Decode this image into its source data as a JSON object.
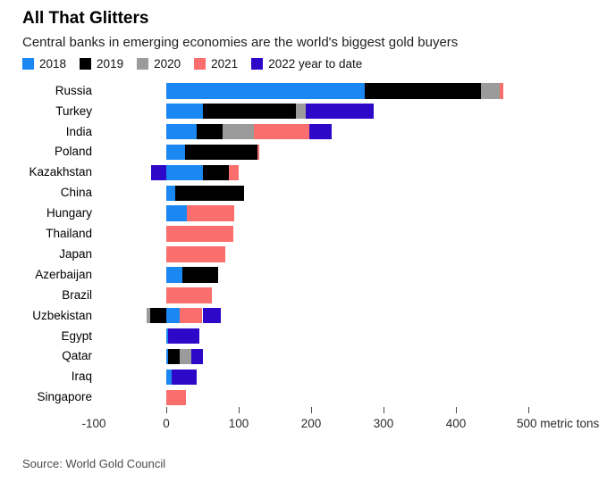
{
  "header": {
    "title": "All That Glitters",
    "subtitle": "Central banks in emerging economies are the world's biggest gold buyers"
  },
  "footer": {
    "source": "Source: World Gold Council"
  },
  "chart_data": {
    "type": "bar",
    "orientation": "horizontal",
    "stacked": true,
    "legend_position": "top",
    "unit": "metric tons",
    "categories": [
      "Russia",
      "Turkey",
      "India",
      "Poland",
      "Kazakhstan",
      "China",
      "Hungary",
      "Thailand",
      "Japan",
      "Azerbaijan",
      "Brazil",
      "Uzbekistan",
      "Egypt",
      "Qatar",
      "Iraq",
      "Singapore"
    ],
    "series": [
      {
        "name": "2018",
        "color": "#1b87f2",
        "values": [
          274,
          51,
          42,
          26,
          51,
          12,
          29,
          0,
          0,
          22,
          0,
          18,
          2,
          3,
          8,
          0
        ]
      },
      {
        "name": "2019",
        "color": "#000000",
        "values": [
          160,
          128,
          36,
          100,
          35,
          95,
          0,
          0,
          0,
          50,
          0,
          -22,
          0,
          15,
          0,
          0
        ]
      },
      {
        "name": "2020",
        "color": "#9b9b9b",
        "values": [
          26,
          13,
          43,
          0,
          0,
          0,
          0,
          0,
          0,
          0,
          0,
          -5,
          0,
          17,
          0,
          0
        ]
      },
      {
        "name": "2021",
        "color": "#fa6e6e",
        "values": [
          5,
          0,
          77,
          3,
          14,
          0,
          65,
          92,
          82,
          0,
          63,
          32,
          0,
          0,
          0,
          27
        ]
      },
      {
        "name": "2022 year to date",
        "color": "#2e08c8",
        "values": [
          0,
          95,
          31,
          0,
          -21,
          0,
          0,
          0,
          0,
          0,
          0,
          25,
          44,
          16,
          34,
          0
        ]
      }
    ],
    "x_axis": {
      "ticks": [
        -100,
        0,
        100,
        200,
        300,
        400,
        500
      ],
      "unit_label": "metric tons",
      "range": [
        -100,
        560
      ]
    }
  }
}
